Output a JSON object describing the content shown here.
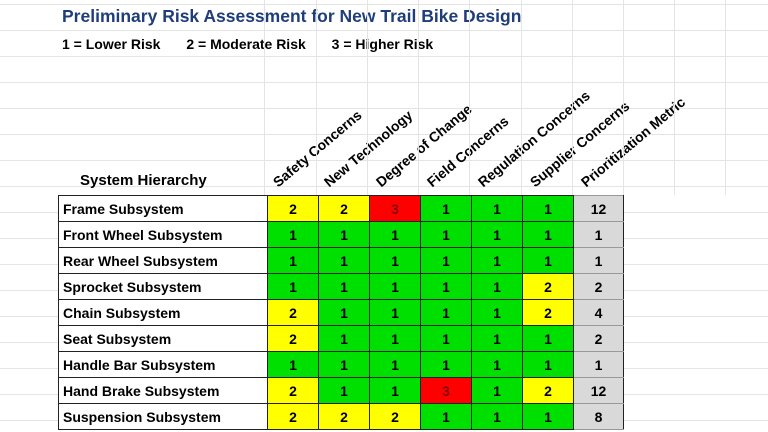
{
  "title": "Preliminary Risk Assessment for New Trail Bike Design",
  "legend": [
    "1 = Lower Risk",
    "2 = Moderate Risk",
    "3 = Higher Risk"
  ],
  "row_header": "System Hierarchy",
  "columns": [
    "Safety Concerns",
    "New Technology",
    "Degree of Change",
    "Field Concerns",
    "Regulation Concerns",
    "Supplier Concerns",
    "Prioritization Metric"
  ],
  "colors": {
    "1": "#00e000",
    "2": "#ffff00",
    "3": "#ff0000",
    "metric": "#d9d9d9",
    "title": "#1f3d7a"
  },
  "rows": [
    {
      "name": "Frame Subsystem",
      "values": [
        2,
        2,
        3,
        1,
        1,
        1
      ],
      "metric": 12
    },
    {
      "name": "Front Wheel Subsystem",
      "values": [
        1,
        1,
        1,
        1,
        1,
        1
      ],
      "metric": 1
    },
    {
      "name": "Rear Wheel Subsystem",
      "values": [
        1,
        1,
        1,
        1,
        1,
        1
      ],
      "metric": 1
    },
    {
      "name": "Sprocket Subsystem",
      "values": [
        1,
        1,
        1,
        1,
        1,
        2
      ],
      "metric": 2
    },
    {
      "name": "Chain Subsystem",
      "values": [
        2,
        1,
        1,
        1,
        1,
        2
      ],
      "metric": 4
    },
    {
      "name": "Seat Subsystem",
      "values": [
        2,
        1,
        1,
        1,
        1,
        1
      ],
      "metric": 2
    },
    {
      "name": "Handle Bar Subsystem",
      "values": [
        1,
        1,
        1,
        1,
        1,
        1
      ],
      "metric": 1
    },
    {
      "name": "Hand Brake Subsystem",
      "values": [
        2,
        1,
        1,
        3,
        1,
        2
      ],
      "metric": 12
    },
    {
      "name": "Suspension Subsystem",
      "values": [
        2,
        2,
        2,
        1,
        1,
        1
      ],
      "metric": 8
    }
  ]
}
